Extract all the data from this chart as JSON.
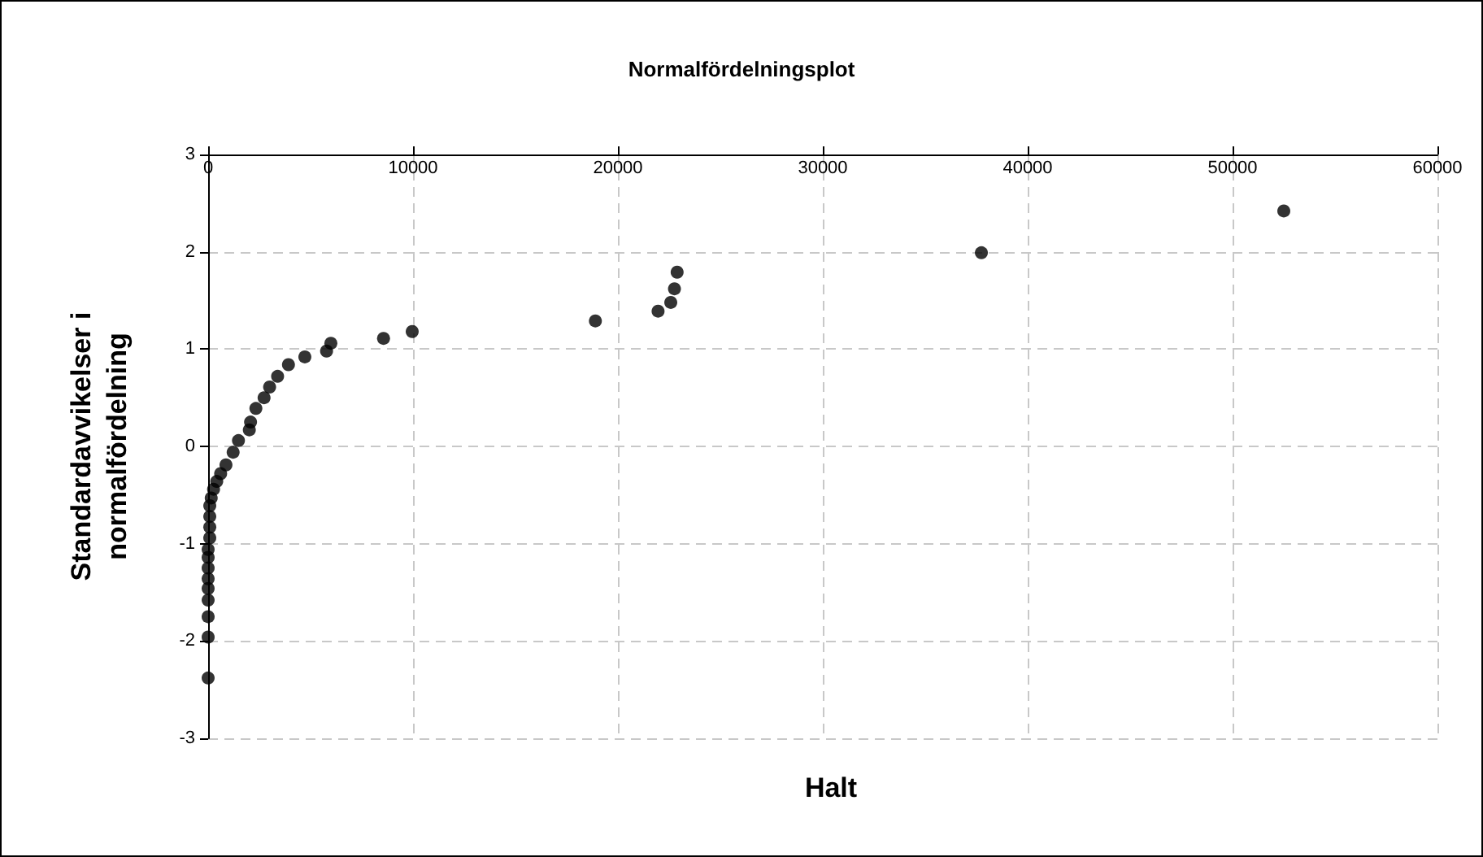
{
  "chart_data": {
    "type": "scatter",
    "title": "Normalfördelningsplot",
    "xlabel": "Halt",
    "ylabel": "Standardavvikelser i\nnormalfördelning",
    "x": [
      0,
      0,
      0,
      0,
      0,
      0,
      0,
      0,
      0,
      80,
      80,
      80,
      80,
      150,
      265,
      420,
      610,
      870,
      1220,
      1480,
      2010,
      2070,
      2330,
      2730,
      3000,
      3390,
      3920,
      4720,
      5780,
      5990,
      8560,
      9960,
      18900,
      21960,
      22580,
      22760,
      22890,
      37740,
      52500
    ],
    "series": [
      {
        "color": "#000000",
        "values": [
          -2.38,
          -1.96,
          -1.75,
          -1.58,
          -1.46,
          -1.36,
          -1.25,
          -1.14,
          -1.06,
          -0.94,
          -0.83,
          -0.72,
          -0.61,
          -0.53,
          -0.44,
          -0.36,
          -0.28,
          -0.19,
          -0.06,
          0.06,
          0.17,
          0.25,
          0.39,
          0.5,
          0.61,
          0.72,
          0.84,
          0.92,
          0.98,
          1.06,
          1.11,
          1.18,
          1.29,
          1.39,
          1.48,
          1.62,
          1.79,
          1.99,
          2.42
        ]
      }
    ],
    "xlim": [
      0,
      60000
    ],
    "xticks": [
      0,
      10000,
      20000,
      30000,
      40000,
      50000,
      60000
    ],
    "ylim": [
      -3,
      3
    ],
    "yticks": [
      -3,
      -2,
      -1,
      0,
      1,
      2,
      3
    ],
    "grid": true,
    "marker": "circle"
  }
}
